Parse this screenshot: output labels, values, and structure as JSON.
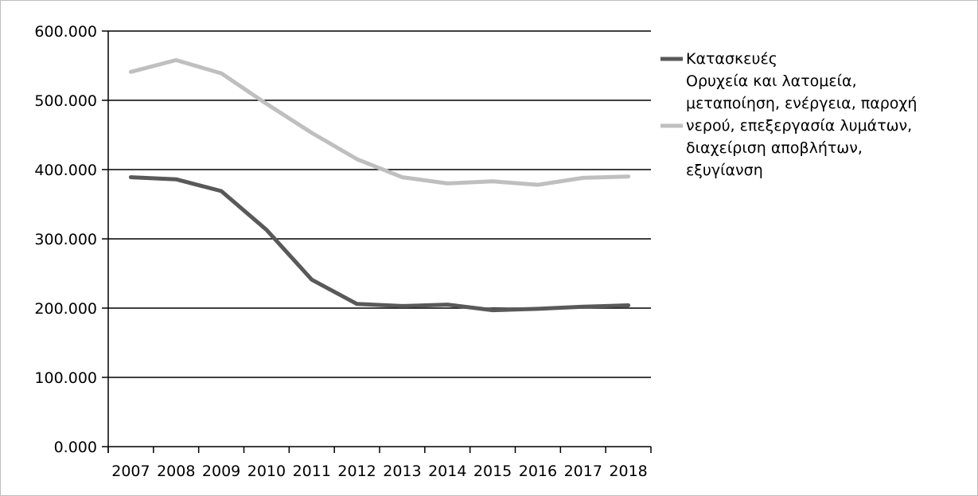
{
  "chart_data": {
    "type": "line",
    "title": "",
    "xlabel": "",
    "ylabel": "",
    "x": [
      "2007",
      "2008",
      "2009",
      "2010",
      "2011",
      "2012",
      "2013",
      "2014",
      "2015",
      "2016",
      "2017",
      "2018"
    ],
    "yticks": [
      "0.000",
      "100.000",
      "200.000",
      "300.000",
      "400.000",
      "500.000",
      "600.000"
    ],
    "ylim": [
      0,
      600000
    ],
    "grid": "horizontal",
    "legend_position": "right",
    "series": [
      {
        "name": "Κατασκευές",
        "color": "#595959",
        "legend_lines": [
          "Κατασκευές"
        ],
        "values": [
          389000,
          386000,
          369000,
          313000,
          241000,
          206000,
          203000,
          205000,
          197000,
          199000,
          202000,
          204000
        ]
      },
      {
        "name": "Ορυχεία και λατομεία, μεταποίηση, ενέργεια, παροχή νερού, επεξεργασία λυμάτων, διαχείριση αποβλήτων, εξυγίανση",
        "color": "#bfbfbf",
        "legend_lines": [
          "Ορυχεία και λατομεία,",
          "μεταποίηση, ενέργεια, παροχή",
          "νερού, επεξεργασία λυμάτων,",
          "διαχείριση αποβλήτων,",
          "εξυγίανση"
        ],
        "values": [
          541000,
          558000,
          539000,
          495000,
          453000,
          415000,
          389000,
          380000,
          383000,
          378000,
          388000,
          390000
        ]
      }
    ]
  }
}
